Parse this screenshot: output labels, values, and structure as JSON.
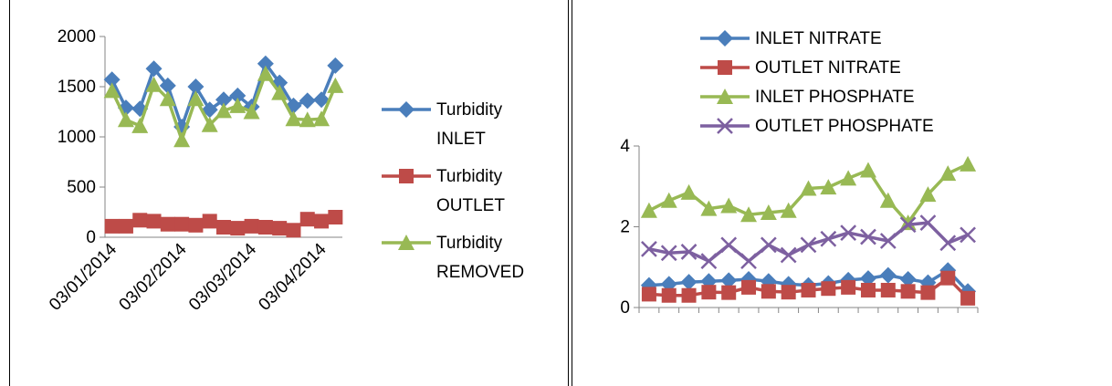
{
  "chart_data": [
    {
      "type": "line",
      "x_tick_labels": [
        "03/01/2014",
        "03/02/2014",
        "03/03/2014",
        "03/04/2014"
      ],
      "ylim": [
        0,
        2000
      ],
      "y_ticks": [
        "0",
        "500",
        "1000",
        "1500",
        "2000"
      ],
      "grid": false,
      "legend_position": "right",
      "series": [
        {
          "name": "Turbidity INLET",
          "legend_lines": [
            "Turbidity",
            "INLET"
          ],
          "color": "#4a7ebb",
          "marker": "diamond",
          "values": [
            1570,
            1290,
            1280,
            1680,
            1510,
            1100,
            1500,
            1270,
            1370,
            1410,
            1300,
            1730,
            1540,
            1310,
            1360,
            1370,
            1710
          ]
        },
        {
          "name": "Turbidity OUTLET",
          "legend_lines": [
            "Turbidity",
            "OUTLET"
          ],
          "color": "#be4b48",
          "marker": "square",
          "values": [
            110,
            110,
            170,
            160,
            130,
            130,
            120,
            160,
            100,
            90,
            110,
            100,
            90,
            70,
            180,
            160,
            200
          ]
        },
        {
          "name": "Turbidity REMOVED",
          "legend_lines": [
            "Turbidity",
            "REMOVED"
          ],
          "color": "#98b954",
          "marker": "triangle",
          "values": [
            1460,
            1170,
            1110,
            1520,
            1380,
            970,
            1380,
            1120,
            1260,
            1310,
            1250,
            1630,
            1440,
            1180,
            1170,
            1180,
            1510
          ]
        }
      ]
    },
    {
      "type": "line",
      "ylim": [
        0,
        4
      ],
      "y_ticks": [
        "0",
        "2",
        "4"
      ],
      "grid": false,
      "legend_position": "top",
      "series": [
        {
          "name": "INLET NITRATE",
          "color": "#4a7ebb",
          "marker": "diamond",
          "values": [
            0.55,
            0.58,
            0.63,
            0.65,
            0.67,
            0.7,
            0.65,
            0.58,
            0.55,
            0.6,
            0.68,
            0.72,
            0.8,
            0.7,
            0.62,
            0.92,
            0.4
          ]
        },
        {
          "name": "OUTLET NITRATE",
          "color": "#be4b48",
          "marker": "square",
          "values": [
            0.33,
            0.3,
            0.3,
            0.38,
            0.37,
            0.5,
            0.4,
            0.38,
            0.43,
            0.47,
            0.5,
            0.43,
            0.43,
            0.4,
            0.37,
            0.73,
            0.23
          ]
        },
        {
          "name": "INLET PHOSPHATE",
          "color": "#98b954",
          "marker": "triangle",
          "values": [
            2.4,
            2.65,
            2.85,
            2.45,
            2.52,
            2.3,
            2.35,
            2.4,
            2.95,
            2.98,
            3.2,
            3.4,
            2.65,
            2.1,
            2.8,
            3.32,
            3.55
          ]
        },
        {
          "name": "OUTLET PHOSPHATE",
          "color": "#7d60a0",
          "marker": "x",
          "values": [
            1.45,
            1.35,
            1.38,
            1.15,
            1.55,
            1.15,
            1.55,
            1.3,
            1.55,
            1.7,
            1.85,
            1.75,
            1.65,
            2.05,
            2.1,
            1.6,
            1.8
          ]
        }
      ]
    }
  ]
}
